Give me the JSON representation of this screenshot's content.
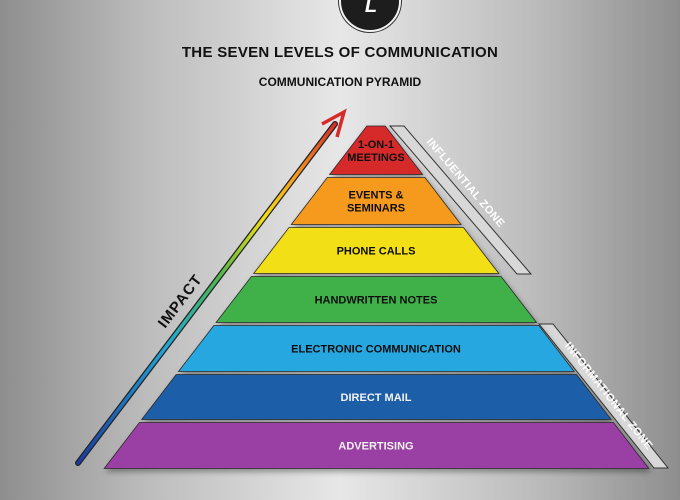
{
  "logo_text": "L",
  "title": "THE SEVEN LEVELS OF COMMUNICATION",
  "subtitle": "COMMUNICATION PYRAMID",
  "arrow_label": "IMPACT",
  "zones": [
    {
      "label": "INFLUENTIAL ZONE"
    },
    {
      "label": "INFORMATIONAL ZONE"
    }
  ],
  "levels": [
    {
      "lines": [
        "1-ON-1",
        "MEETINGS"
      ],
      "color": "#d62b2b"
    },
    {
      "lines": [
        "EVENTS &",
        "SEMINARS"
      ],
      "color": "#f59a1f"
    },
    {
      "lines": [
        "PHONE CALLS"
      ],
      "color": "#f3df12"
    },
    {
      "lines": [
        "HANDWRITTEN NOTES"
      ],
      "color": "#3fb14a"
    },
    {
      "lines": [
        "ELECTRONIC COMMUNICATION"
      ],
      "color": "#27a7df"
    },
    {
      "lines": [
        "DIRECT MAIL"
      ],
      "color": "#1b5fa8"
    },
    {
      "lines": [
        "ADVERTISING"
      ],
      "color": "#9a3fa5"
    }
  ]
}
